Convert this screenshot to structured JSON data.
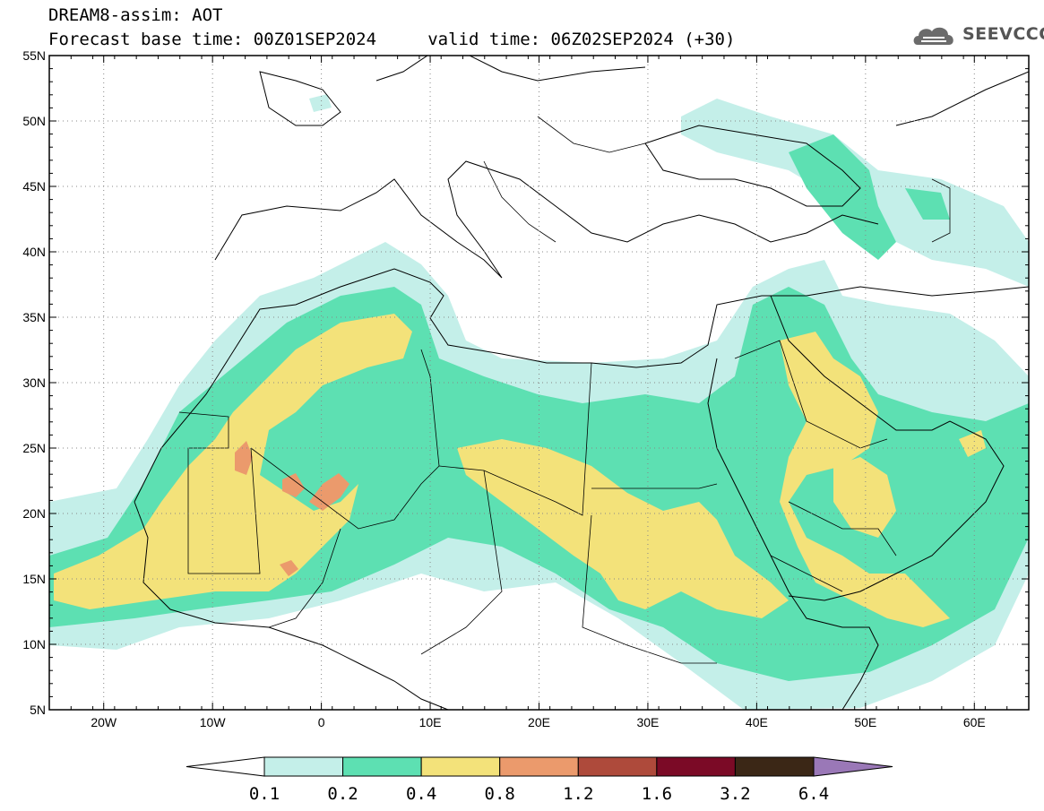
{
  "header": {
    "title_line1": "DREAM8-assim: AOT",
    "title_line2": "Forecast base time: 00Z01SEP2024     valid time: 06Z02SEP2024 (+30)",
    "logo_text": "SEEVCCC",
    "logo_icon": "cloud-icon"
  },
  "map": {
    "lon_range": [
      -25,
      65
    ],
    "lat_range": [
      5,
      55
    ],
    "lat_ticks": [
      "5N",
      "10N",
      "15N",
      "20N",
      "25N",
      "30N",
      "35N",
      "40N",
      "45N",
      "50N",
      "55N"
    ],
    "lon_ticks": [
      "20W",
      "10W",
      "0",
      "10E",
      "20E",
      "30E",
      "40E",
      "50E",
      "60E"
    ],
    "grid_lines": "dotted"
  },
  "colorbar": {
    "labels": [
      "0.1",
      "0.2",
      "0.4",
      "0.8",
      "1.2",
      "1.6",
      "3.2",
      "6.4"
    ],
    "colors": [
      "#c4efe9",
      "#5de0b2",
      "#f3e27a",
      "#eb9a6c",
      "#ae4a3b",
      "#7b0a26",
      "#3b2716",
      "#9a78b7"
    ],
    "extend": "both"
  }
}
